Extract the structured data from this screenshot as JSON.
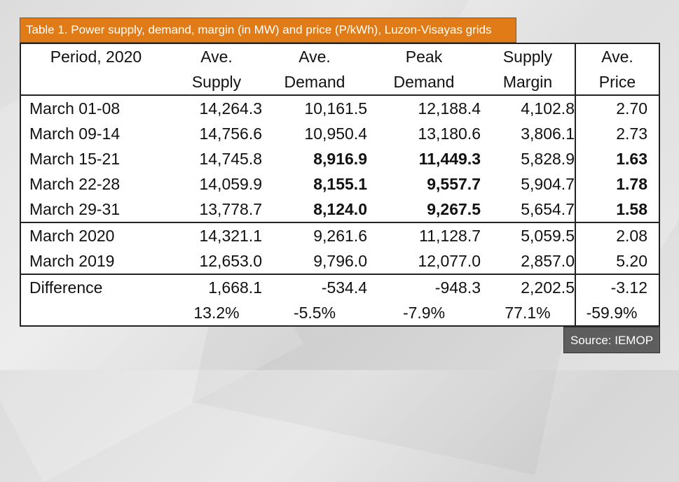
{
  "title": "Table 1. Power supply, demand, margin (in MW) and price (P/kWh), Luzon-Visayas grids",
  "header": {
    "line1": [
      "Period, 2020",
      "Ave.",
      "Ave.",
      "Peak",
      "Supply",
      "Ave."
    ],
    "line2": [
      "",
      "Supply",
      "Demand",
      "Demand",
      "Margin",
      "Price"
    ]
  },
  "weekly_rows": [
    [
      "March 01-08",
      "14,264.3",
      "10,161.5",
      "12,188.4",
      "4,102.8",
      "2.70"
    ],
    [
      "March 09-14",
      "14,756.6",
      "10,950.4",
      "13,180.6",
      "3,806.1",
      "2.73"
    ],
    [
      "March 15-21",
      "14,745.8",
      "8,916.9",
      "11,449.3",
      "5,828.9",
      "1.63"
    ],
    [
      "March 22-28",
      "14,059.9",
      "8,155.1",
      "9,557.7",
      "5,904.7",
      "1.78"
    ],
    [
      "March 29-31",
      "13,778.7",
      "8,124.0",
      "9,267.5",
      "5,654.7",
      "1.58"
    ]
  ],
  "monthly_rows": [
    [
      "March 2020",
      "14,321.1",
      "9,261.6",
      "11,128.7",
      "5,059.5",
      "2.08"
    ],
    [
      "March 2019",
      "12,653.0",
      "9,796.0",
      "12,077.0",
      "2,857.0",
      "5.20"
    ]
  ],
  "difference_rows": [
    [
      "Difference",
      "1,668.1",
      "-534.4",
      "-948.3",
      "2,202.5",
      "-3.12"
    ],
    [
      "",
      "13.2%",
      "-5.5%",
      "-7.9%",
      "77.1%",
      "-59.9%"
    ]
  ],
  "source": "Source: IEMOP"
}
